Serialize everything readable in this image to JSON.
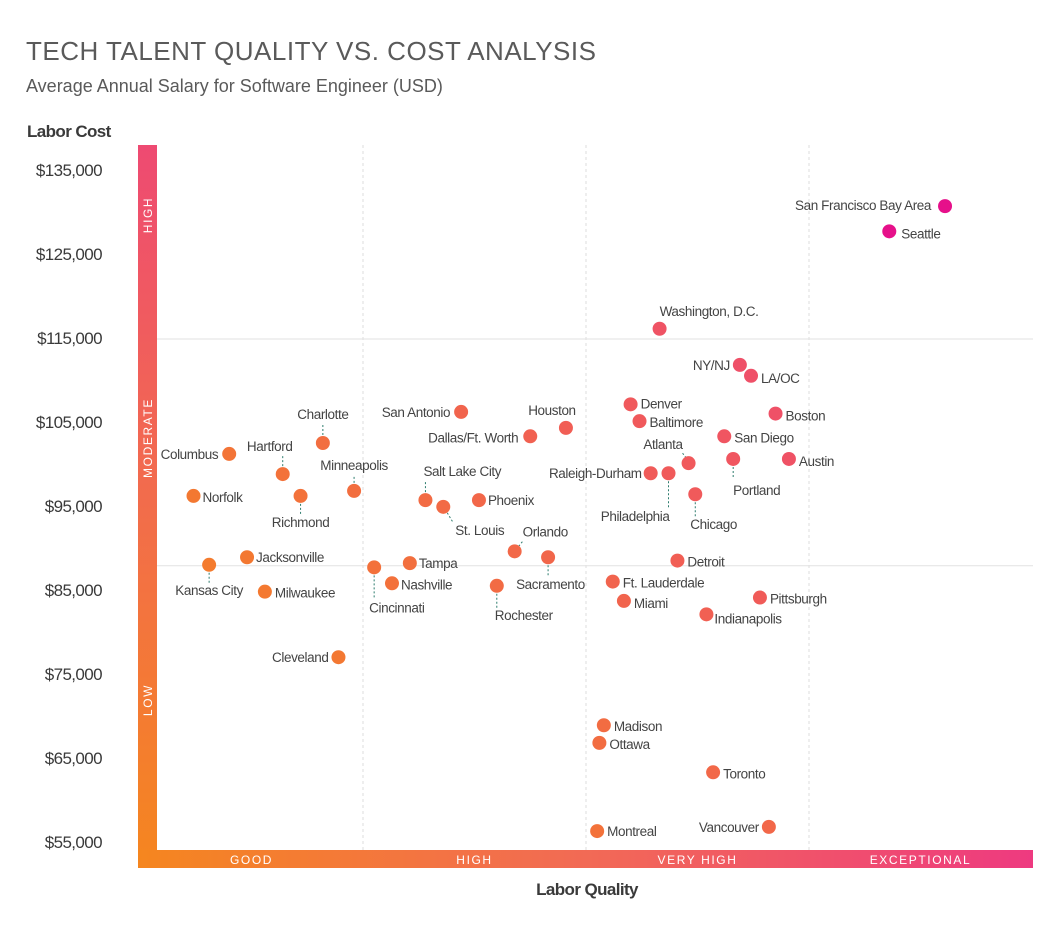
{
  "chart_data": {
    "type": "scatter",
    "title": "TECH TALENT QUALITY VS. COST ANALYSIS",
    "subtitle": "Average Annual Salary for Software Engineer (USD)",
    "ylabel": "Labor Cost",
    "xlabel": "Labor Quality",
    "ylim": [
      52000,
      137000
    ],
    "yticks": [
      "$55,000",
      "$65,000",
      "$75,000",
      "$85,000",
      "$95,000",
      "$105,000",
      "$115,000",
      "$125,000",
      "$135,000"
    ],
    "ytick_values": [
      55000,
      65000,
      75000,
      85000,
      95000,
      105000,
      115000,
      125000,
      135000
    ],
    "x_categories": [
      "GOOD",
      "HIGH",
      "VERY HIGH",
      "EXCEPTIONAL"
    ],
    "xlim": [
      0,
      4
    ],
    "y_bands": [
      "LOW",
      "MODERATE",
      "HIGH"
    ],
    "y_band_breaks": [
      88000,
      115000
    ],
    "grid": true,
    "colors": {
      "low": "#f5861f",
      "mid": "#ef5068",
      "high": "#e6108a"
    },
    "points": [
      {
        "label": "San Francisco Bay Area",
        "x": 3.61,
        "y": 130700
      },
      {
        "label": "Seattle",
        "x": 3.36,
        "y": 127700
      },
      {
        "label": "Washington, D.C.",
        "x": 2.33,
        "y": 116100
      },
      {
        "label": "NY/NJ",
        "x": 2.69,
        "y": 111800
      },
      {
        "label": "LA/OC",
        "x": 2.74,
        "y": 110500
      },
      {
        "label": "Boston",
        "x": 2.85,
        "y": 106000
      },
      {
        "label": "Denver",
        "x": 2.2,
        "y": 107100
      },
      {
        "label": "Baltimore",
        "x": 2.24,
        "y": 105100
      },
      {
        "label": "San Diego",
        "x": 2.62,
        "y": 103300
      },
      {
        "label": "Atlanta",
        "x": 2.46,
        "y": 100100
      },
      {
        "label": "Austin",
        "x": 2.91,
        "y": 100600
      },
      {
        "label": "Portland",
        "x": 2.66,
        "y": 100600
      },
      {
        "label": "Raleigh-Durham",
        "x": 2.29,
        "y": 98900
      },
      {
        "label": "Philadelphia",
        "x": 2.37,
        "y": 98900
      },
      {
        "label": "Chicago",
        "x": 2.49,
        "y": 96400
      },
      {
        "label": "Detroit",
        "x": 2.41,
        "y": 88500
      },
      {
        "label": "Ft. Lauderdale",
        "x": 2.12,
        "y": 86000
      },
      {
        "label": "Miami",
        "x": 2.17,
        "y": 83700
      },
      {
        "label": "Pittsburgh",
        "x": 2.78,
        "y": 84100
      },
      {
        "label": "Indianapolis",
        "x": 2.54,
        "y": 82100
      },
      {
        "label": "Madison",
        "x": 2.08,
        "y": 68900
      },
      {
        "label": "Ottawa",
        "x": 2.06,
        "y": 66800
      },
      {
        "label": "Toronto",
        "x": 2.57,
        "y": 63300
      },
      {
        "label": "Montreal",
        "x": 2.05,
        "y": 56300
      },
      {
        "label": "Vancouver",
        "x": 2.82,
        "y": 56800
      },
      {
        "label": "Houston",
        "x": 1.91,
        "y": 104300
      },
      {
        "label": "Dallas/Ft. Worth",
        "x": 1.75,
        "y": 103300
      },
      {
        "label": "San Antonio",
        "x": 1.44,
        "y": 106200
      },
      {
        "label": "Salt Lake City",
        "x": 1.28,
        "y": 95700
      },
      {
        "label": "St. Louis",
        "x": 1.36,
        "y": 94900
      },
      {
        "label": "Phoenix",
        "x": 1.52,
        "y": 95700
      },
      {
        "label": "Orlando",
        "x": 1.68,
        "y": 89600
      },
      {
        "label": "Sacramento",
        "x": 1.83,
        "y": 88900
      },
      {
        "label": "Rochester",
        "x": 1.6,
        "y": 85500
      },
      {
        "label": "Tampa",
        "x": 1.21,
        "y": 88200
      },
      {
        "label": "Nashville",
        "x": 1.13,
        "y": 85800
      },
      {
        "label": "Cincinnati",
        "x": 1.05,
        "y": 87700
      },
      {
        "label": "Cleveland",
        "x": 0.89,
        "y": 77000
      },
      {
        "label": "Charlotte",
        "x": 0.82,
        "y": 102500
      },
      {
        "label": "Minneapolis",
        "x": 0.96,
        "y": 96800
      },
      {
        "label": "Hartford",
        "x": 0.64,
        "y": 98800
      },
      {
        "label": "Richmond",
        "x": 0.72,
        "y": 96200
      },
      {
        "label": "Columbus",
        "x": 0.4,
        "y": 101200
      },
      {
        "label": "Norfolk",
        "x": 0.24,
        "y": 96200
      },
      {
        "label": "Jacksonville",
        "x": 0.48,
        "y": 88900
      },
      {
        "label": "Kansas City",
        "x": 0.31,
        "y": 88000
      },
      {
        "label": "Milwaukee",
        "x": 0.56,
        "y": 84800
      }
    ]
  }
}
